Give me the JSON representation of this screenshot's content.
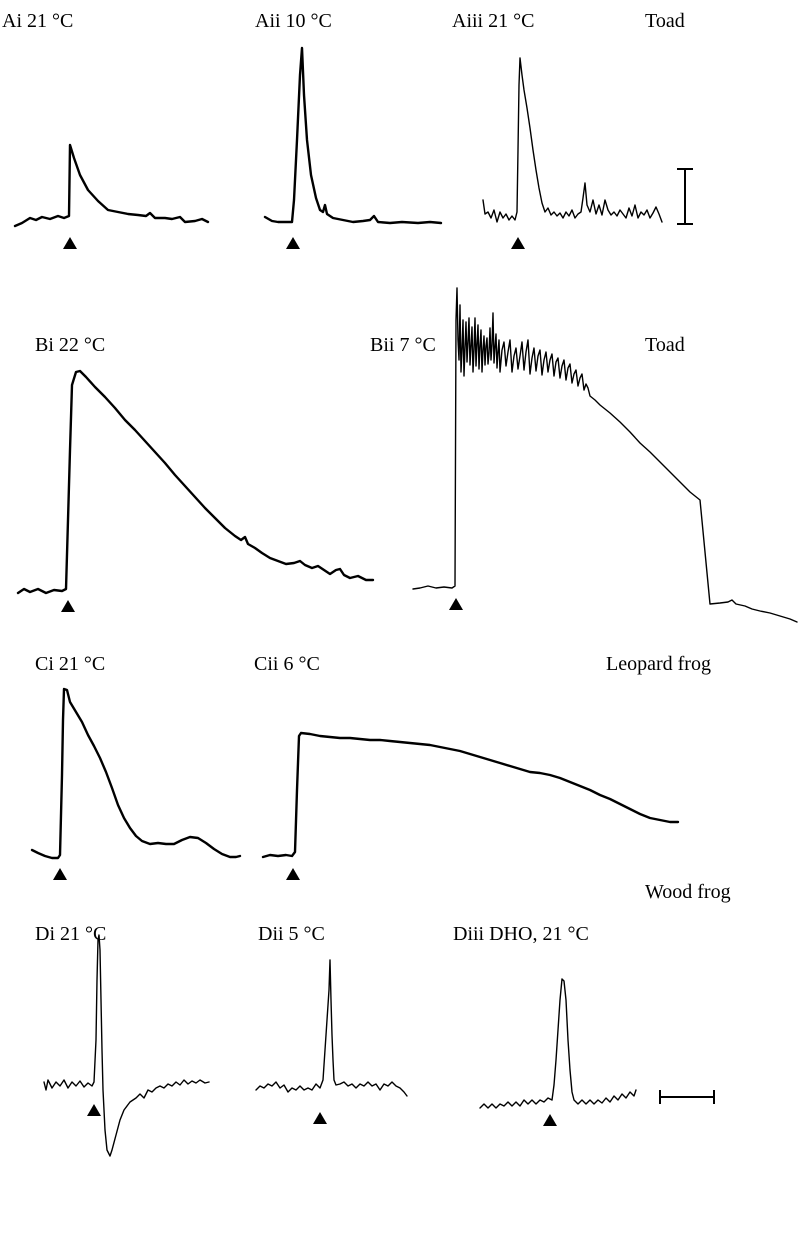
{
  "figure": {
    "panels": {
      "Ai": {
        "label": "Ai  21 °C"
      },
      "Aii": {
        "label": "Aii  10 °C"
      },
      "Aiii": {
        "label": "Aiii  21 °C"
      },
      "Bi": {
        "label": "Bi  22 °C"
      },
      "Bii": {
        "label": "Bii  7 °C"
      },
      "Ci": {
        "label": "Ci  21 °C"
      },
      "Cii": {
        "label": "Cii  6 °C"
      },
      "Di": {
        "label": "Di  21 °C"
      },
      "Dii": {
        "label": "Dii  5 °C"
      },
      "Diii": {
        "label": "Diii  DHO, 21 °C"
      }
    },
    "species": {
      "row_a": "Toad",
      "row_b": "Toad",
      "row_c": "Leopard frog",
      "row_d": "Wood frog"
    },
    "stimulus_marker": "triangle",
    "scale_bars": [
      "vertical",
      "horizontal"
    ]
  }
}
